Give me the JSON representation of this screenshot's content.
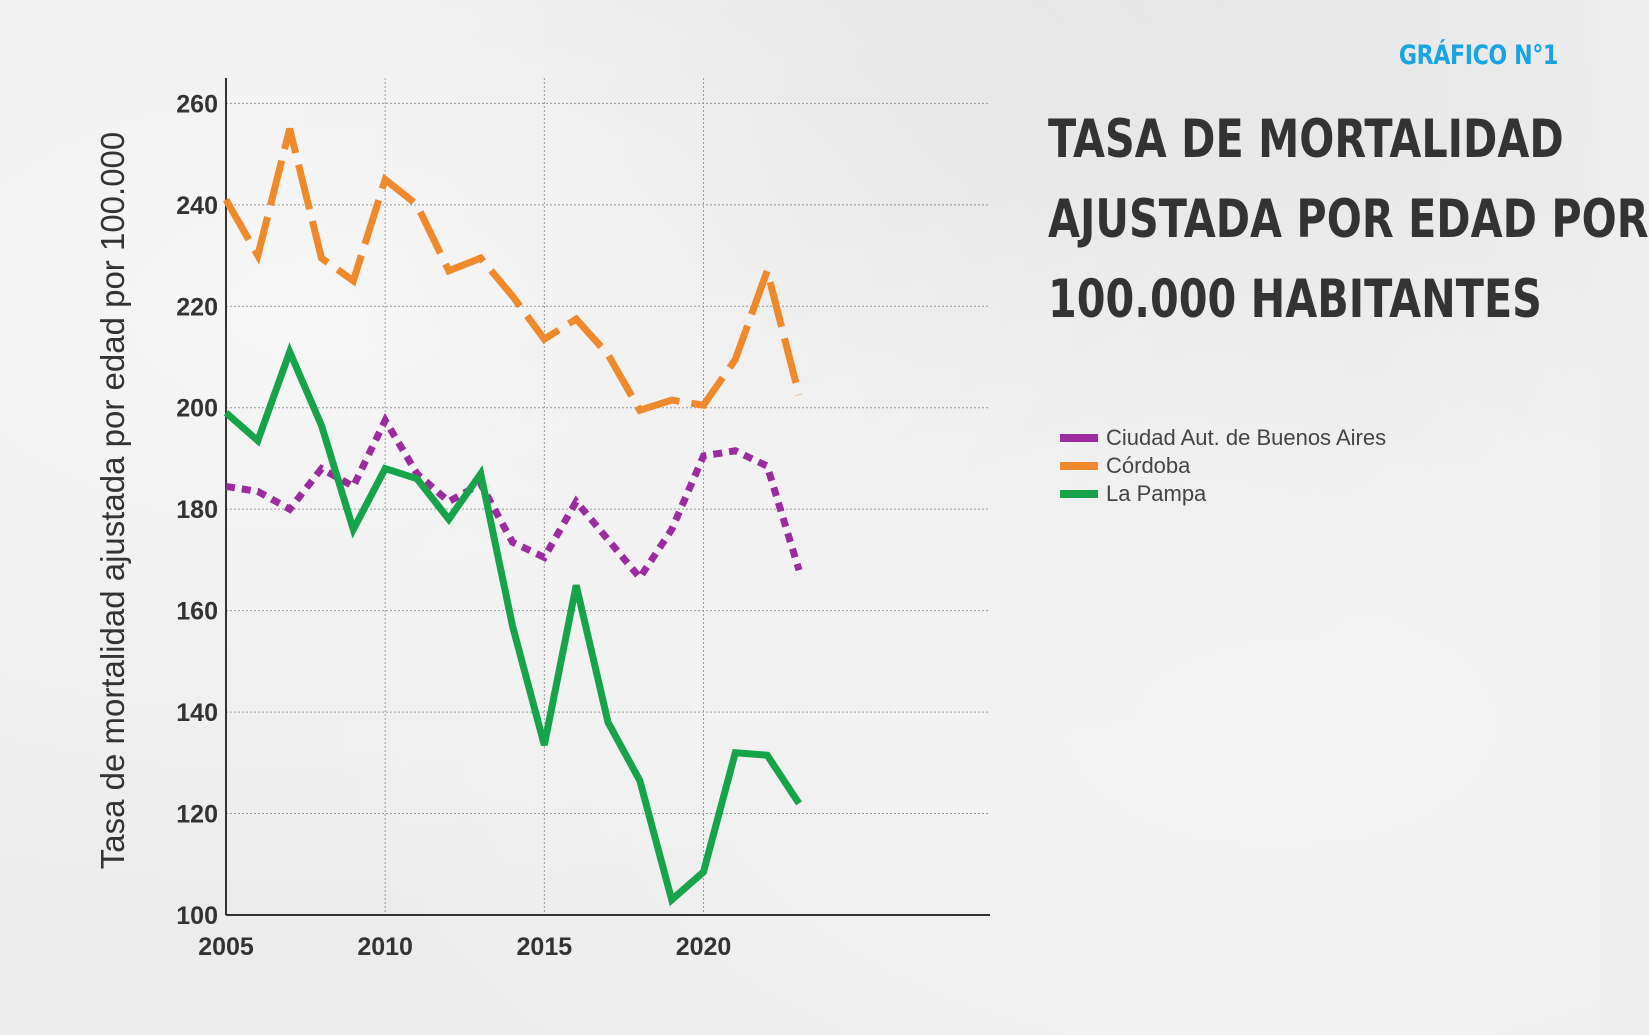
{
  "badge": "GRÁFICO N°1",
  "title_lines": [
    "TASA DE MORTALIDAD",
    "AJUSTADA POR EDAD POR",
    "100.000 HABITANTES"
  ],
  "legend": [
    {
      "label": "Ciudad Aut. de Buenos Aires",
      "color": "#9b2b9e"
    },
    {
      "label": "Córdoba",
      "color": "#f0892c"
    },
    {
      "label": "La Pampa",
      "color": "#16a34a"
    }
  ],
  "chart_data": {
    "type": "line",
    "title": "TASA DE MORTALIDAD AJUSTADA POR EDAD POR 100.000 HABITANTES",
    "xlabel": "",
    "ylabel": "Tasa de mortalidad ajustada por edad por 100.000",
    "xlim": [
      2005,
      2029
    ],
    "ylim": [
      100,
      265
    ],
    "x_ticks": [
      2005,
      2010,
      2015,
      2020
    ],
    "y_ticks": [
      100,
      120,
      140,
      160,
      180,
      200,
      220,
      240,
      260
    ],
    "grid": true,
    "legend_position": "right",
    "x": [
      2005,
      2006,
      2007,
      2008,
      2009,
      2010,
      2011,
      2012,
      2013,
      2014,
      2015,
      2016,
      2017,
      2018,
      2019,
      2020,
      2021,
      2022,
      2023
    ],
    "series": [
      {
        "name": "Ciudad Aut. de Buenos Aires",
        "color": "#9b2b9e",
        "style": "dotted",
        "values": [
          184.5,
          183.5,
          180,
          188,
          184.5,
          197.5,
          187,
          181.5,
          185,
          173.5,
          170.5,
          181.5,
          174,
          166.5,
          176,
          190.5,
          191.5,
          188.5,
          168
        ]
      },
      {
        "name": "Córdoba",
        "color": "#f0892c",
        "style": "dashed",
        "values": [
          241,
          230,
          255,
          229.5,
          225,
          245,
          240,
          227,
          229.5,
          222,
          213.5,
          217.5,
          210.5,
          199.5,
          201.5,
          200.5,
          209.5,
          227,
          202.5
        ]
      },
      {
        "name": "La Pampa",
        "color": "#16a34a",
        "style": "solid",
        "values": [
          199,
          193.5,
          211,
          196.5,
          176,
          188,
          186,
          178,
          187,
          157,
          133.5,
          165,
          138,
          126.5,
          103,
          108.5,
          132,
          131.5,
          122
        ]
      }
    ]
  }
}
